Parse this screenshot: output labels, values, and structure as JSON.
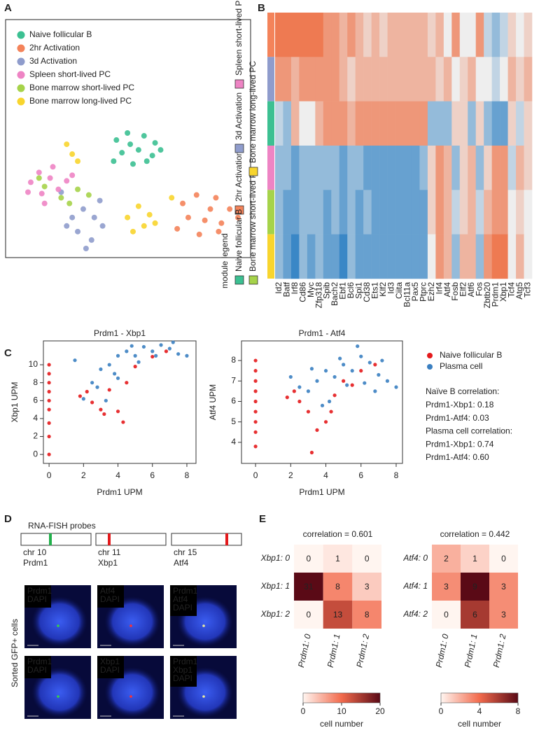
{
  "panel_labels": [
    "A",
    "B",
    "C",
    "D",
    "E"
  ],
  "chart_data": [
    {
      "type": "scatter",
      "legend": "top-left",
      "series": [
        {
          "name": "Naive follicular B",
          "color": "#3cc092",
          "x": [
            36,
            40,
            46,
            50,
            38,
            44,
            49,
            35,
            42,
            47,
            52,
            41
          ],
          "values": [
            85,
            90,
            88,
            83,
            76,
            78,
            74,
            70,
            68,
            70,
            78,
            82
          ]
        },
        {
          "name": "2hr Activation",
          "color": "#f4835a",
          "x": [
            60,
            65,
            72,
            77,
            62,
            68,
            74,
            58,
            66,
            73,
            70,
            80
          ],
          "values": [
            40,
            46,
            44,
            36,
            30,
            28,
            26,
            22,
            18,
            20,
            36,
            30
          ]
        },
        {
          "name": "3d Activation",
          "color": "#8f9ccc",
          "x": [
            20,
            24,
            28,
            22,
            27,
            31,
            18,
            25,
            16,
            30
          ],
          "values": [
            30,
            36,
            30,
            20,
            14,
            24,
            24,
            8,
            48,
            42
          ]
        },
        {
          "name": "Spleen short-lived PC",
          "color": "#ee84c4",
          "x": [
            5,
            8,
            12,
            15,
            9,
            4,
            18,
            13,
            20,
            10
          ],
          "values": [
            55,
            62,
            58,
            50,
            47,
            48,
            56,
            66,
            60,
            40
          ]
        },
        {
          "name": "Bone marrow short-lived PC",
          "color": "#a6d34a",
          "x": [
            10,
            16,
            22,
            19,
            8,
            26
          ],
          "values": [
            52,
            44,
            50,
            40,
            58,
            46
          ]
        },
        {
          "name": "Bone marrow long-lived PC",
          "color": "#f8d52e",
          "x": [
            40,
            44,
            48,
            46,
            42,
            50,
            20,
            22,
            18,
            56
          ],
          "values": [
            30,
            38,
            32,
            24,
            20,
            26,
            75,
            70,
            82,
            44
          ]
        }
      ]
    },
    {
      "type": "heatmap",
      "legend_title": "module legend",
      "low_color": "#3a87c6",
      "mid_color": "#eeeeee",
      "high_color": "#ee7a52",
      "x": [
        "Id2",
        "Batf",
        "Irf8",
        "Cd86",
        "Myc",
        "Zfp318",
        "Spib",
        "Bach2",
        "Ebf1",
        "Bcl6",
        "Spi1",
        "Cd38",
        "Ets1",
        "Klf2",
        "Id3",
        "Ciita",
        "Bcl11a",
        "Pax5",
        "Ptprc",
        "Ezh2",
        "Irf4",
        "Atf4",
        "Fosb",
        "Elf2",
        "Atf6",
        "Fos",
        "Zbtb20",
        "Prdm1",
        "Xbp1",
        "Tcf4",
        "Atg5",
        "Tcf3"
      ],
      "series": [
        {
          "name": "2hr Activation",
          "color": "#f4835a",
          "values": [
            2,
            2,
            2,
            2,
            2,
            2,
            1.5,
            1.5,
            1,
            1.5,
            1,
            0.5,
            1,
            0.5,
            1,
            1,
            1,
            1,
            1,
            0.5,
            1,
            0,
            1.5,
            0,
            0,
            1.5,
            -0.5,
            -1,
            -0.5,
            0.5,
            0,
            0.5
          ]
        },
        {
          "name": "3d Activation",
          "color": "#8f9ccc",
          "values": [
            1.5,
            1.5,
            1,
            1.5,
            1.5,
            1.5,
            1.5,
            1.5,
            1,
            0.5,
            1,
            1,
            1,
            1,
            1,
            1,
            1,
            1,
            1,
            1,
            0.5,
            1,
            0,
            0.5,
            1,
            0,
            0,
            -0.5,
            0,
            1,
            0.5,
            1
          ]
        },
        {
          "name": "Naive follicular B",
          "color": "#3cc092",
          "values": [
            -0.5,
            -1,
            1,
            0,
            0,
            1,
            1.5,
            1.5,
            1.5,
            1,
            1.5,
            1.5,
            1.5,
            1.5,
            1.5,
            1.5,
            1.5,
            1.5,
            1.5,
            -1,
            -1,
            -1,
            0.5,
            0.5,
            -1,
            0.5,
            -1,
            -1.5,
            -1.5,
            0.5,
            -0.5,
            0.5
          ]
        },
        {
          "name": "Spleen short-lived PC",
          "color": "#ee84c4",
          "values": [
            -1,
            -1,
            -1.5,
            -1,
            -1,
            -1,
            -1,
            -1,
            -1.5,
            -1,
            -1,
            -1.5,
            -1.5,
            -1.5,
            -1.5,
            -1.5,
            -1.5,
            -1.5,
            -1,
            0.5,
            1.5,
            1,
            -1,
            0.5,
            1,
            -1,
            0.5,
            1.5,
            1.5,
            -0.5,
            1,
            0.5
          ]
        },
        {
          "name": "Bone marrow short-lived PC",
          "color": "#a6d34a",
          "values": [
            -1,
            -1.5,
            -1.5,
            -1,
            -1,
            -1,
            -1.5,
            -1,
            -1.5,
            -1,
            -1.5,
            -1,
            -1.5,
            -1.5,
            -1.5,
            -1.5,
            -1.5,
            -1.5,
            -1.5,
            0.5,
            1.5,
            1,
            -0.5,
            0.5,
            1,
            -0.5,
            1,
            1.5,
            1.5,
            0,
            0.5,
            0
          ]
        },
        {
          "name": "Bone marrow long-lived PC",
          "color": "#f8d52e",
          "values": [
            -1,
            -1.5,
            -2,
            -1,
            -1.5,
            -1,
            -1.5,
            -1.5,
            -2,
            -1,
            -1.5,
            -1.5,
            -1.5,
            -1.5,
            -1.5,
            -1.5,
            -1.5,
            -1.5,
            -1.5,
            0,
            1.5,
            1,
            -1,
            1,
            1,
            -1,
            1.5,
            2,
            2,
            0,
            1,
            0
          ]
        }
      ]
    },
    {
      "type": "scatter",
      "title": "Prdm1 - Xbp1",
      "xlabel": "Prdm1 UPM",
      "ylabel": "Xbp1 UPM",
      "xlim": [
        -0.33,
        8.53
      ],
      "ylim": [
        -1,
        12.66
      ],
      "xticks": [
        0,
        2,
        4,
        6,
        8
      ],
      "yticks": [
        0,
        2,
        4,
        6,
        8,
        10
      ],
      "series": [
        {
          "color": "#3a7fc1",
          "x": [
            1.5,
            2.5,
            3,
            3.5,
            4,
            4.5,
            5,
            5.5,
            6,
            6.5,
            7,
            7.5,
            8,
            4,
            3.3,
            2,
            5.2,
            6.2,
            4.8,
            3.8,
            7.2,
            2.8
          ],
          "values": [
            10.5,
            8,
            9.5,
            10,
            11,
            11.5,
            11,
            12,
            11.5,
            12.2,
            11.8,
            11.2,
            11,
            8.5,
            6,
            6.2,
            10.3,
            11,
            12.1,
            9,
            12.5,
            7.5
          ]
        },
        {
          "color": "#e41a1c",
          "x": [
            0,
            0,
            0,
            0,
            0,
            0,
            0,
            0,
            0,
            1.8,
            2.5,
            3,
            3.2,
            4,
            4.3,
            3.5,
            5,
            6,
            6.8,
            4.5,
            2.2
          ],
          "values": [
            0,
            2,
            3.5,
            5,
            6,
            7,
            8,
            9,
            10,
            6.5,
            5.8,
            5,
            4.5,
            4.8,
            3.6,
            7.2,
            9.8,
            10.9,
            11.5,
            8,
            7
          ]
        }
      ]
    },
    {
      "type": "scatter",
      "title": "Prdm1 - Atf4",
      "xlabel": "Prdm1 UPM",
      "ylabel": "Atf4 UPM",
      "xlim": [
        -0.8,
        8.36
      ],
      "ylim": [
        2.97,
        8.96
      ],
      "xticks": [
        0,
        2,
        4,
        6,
        8
      ],
      "yticks": [
        4,
        5,
        6,
        7,
        8
      ],
      "legend": "right",
      "series": [
        {
          "name": "Plasma cell",
          "color": "#3a7fc1",
          "x": [
            2,
            2.5,
            3,
            3.5,
            4,
            4.5,
            5,
            5.5,
            6,
            6.5,
            7,
            7.5,
            8,
            4.2,
            3.8,
            5.2,
            6.2,
            5.8,
            4.8,
            7.2,
            3.2,
            6.8
          ],
          "values": [
            7.2,
            6.7,
            6.5,
            7,
            7.5,
            7.2,
            7.8,
            7.5,
            8.2,
            7.9,
            7.3,
            7,
            6.7,
            6,
            5.8,
            6.8,
            6.9,
            8.7,
            8.1,
            8,
            7.6,
            6.5
          ]
        },
        {
          "name": "Naive follicular B",
          "color": "#e41a1c",
          "x": [
            0,
            0,
            0,
            0,
            0,
            0,
            0,
            0,
            0,
            1.8,
            2.5,
            3,
            3.2,
            3.5,
            4,
            4.3,
            4.5,
            5,
            5.5,
            6,
            6.8,
            2.2
          ],
          "values": [
            3.8,
            4.5,
            5,
            5.5,
            6,
            6.5,
            7,
            7.5,
            8,
            6.2,
            6,
            5.5,
            3.5,
            4.6,
            5,
            5.5,
            6.3,
            7,
            6.8,
            7.5,
            7.8,
            6.5
          ]
        }
      ],
      "annotations": [
        "Naïve B correlation:",
        "Prdm1-Xbp1: 0.18",
        "Prdm1-Atf4: 0.03",
        "Plasma cell correlation:",
        "Prdm1-Xbp1: 0.74",
        "Prdm1-Atf4: 0.60"
      ]
    },
    {
      "type": "heatmap",
      "title": "correlation = 0.601",
      "x": [
        "Prdm1: 0",
        "Prdm1: 1",
        "Prdm1: 2"
      ],
      "y": [
        "Xbp1: 0",
        "Xbp1: 1",
        "Xbp1: 2"
      ],
      "values": [
        [
          0,
          1,
          0
        ],
        [
          31,
          8,
          3
        ],
        [
          0,
          13,
          8
        ]
      ],
      "colors": [
        "#fff5f0",
        "#f26a4c",
        "#5a0a16"
      ],
      "zlim": [
        0,
        20
      ],
      "zticks": [
        0,
        10,
        20
      ],
      "zlabel": "cell number"
    },
    {
      "type": "heatmap",
      "title": "correlation = 0.442",
      "x": [
        "Prdm1: 0",
        "Prdm1: 1",
        "Prdm1: 2"
      ],
      "y": [
        "Atf4: 0",
        "Atf4: 1",
        "Atf4: 2"
      ],
      "values": [
        [
          2,
          1,
          0
        ],
        [
          3,
          9,
          3
        ],
        [
          0,
          6,
          3
        ]
      ],
      "colors": [
        "#fff5f0",
        "#f26a4c",
        "#5a0a16"
      ],
      "zlim": [
        0,
        8
      ],
      "zticks": [
        0,
        4,
        8
      ],
      "zlabel": "cell number"
    }
  ],
  "fish": {
    "title": "RNA-FISH probes",
    "probes": [
      {
        "chromosome": "chr 10",
        "gene": "Prdm1",
        "color": "#21b04b"
      },
      {
        "chromosome": "chr 11",
        "gene": "Xbp1",
        "color": "#e3191c"
      },
      {
        "chromosome": "chr 15",
        "gene": "Atf4",
        "color": "#e3191c"
      }
    ],
    "row_label": "Sorted GFP+ cells",
    "images": [
      [
        {
          "text": "Prdm1",
          "color": "#35d04a"
        },
        {
          "text": "DAPI",
          "color": "#3fa0ff"
        }
      ],
      [
        {
          "text": "Atf4",
          "color": "#ff3030"
        },
        {
          "text": "DAPI",
          "color": "#3fa0ff"
        }
      ],
      [
        {
          "text": "Prdm1",
          "color": "#35d04a"
        },
        {
          "text": "Atf4",
          "color": "#ff3030"
        },
        {
          "text": "DAPI",
          "color": "#3fa0ff"
        }
      ],
      [
        {
          "text": "Prdm1",
          "color": "#35d04a"
        },
        {
          "text": "DAPI",
          "color": "#3fa0ff"
        }
      ],
      [
        {
          "text": "Xbp1",
          "color": "#ff3030"
        },
        {
          "text": "DAPI",
          "color": "#3fa0ff"
        }
      ],
      [
        {
          "text": "Prdm1",
          "color": "#35d04a"
        },
        {
          "text": "Xbp1",
          "color": "#ff3030"
        },
        {
          "text": "DAPI",
          "color": "#3fa0ff"
        }
      ]
    ]
  }
}
